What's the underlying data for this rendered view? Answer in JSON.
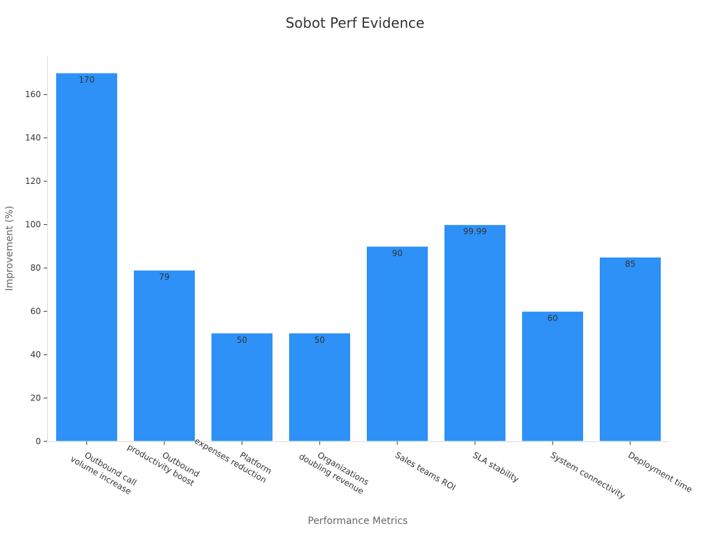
{
  "chart_data": {
    "type": "bar",
    "title": "Sobot Perf Evidence",
    "xlabel": "Performance Metrics",
    "ylabel": "Improvement (%)",
    "categories": [
      [
        "Outbound call",
        "volume increase"
      ],
      [
        "Outbound",
        "productivity boost"
      ],
      [
        "Platform",
        "expenses reduction"
      ],
      [
        "Organizations",
        "doubling revenue"
      ],
      [
        "Sales teams ROI"
      ],
      [
        "SLA stability"
      ],
      [
        "System connectivity"
      ],
      [
        "Deployment time"
      ]
    ],
    "values": [
      170,
      79,
      50,
      50,
      90,
      99.99,
      60,
      85
    ],
    "data_labels": [
      "170",
      "79",
      "50",
      "50",
      "90",
      "99.99",
      "60",
      "85"
    ],
    "ylim": [
      0,
      178
    ],
    "yticks": [
      0,
      20,
      40,
      60,
      80,
      100,
      120,
      140,
      160
    ],
    "grid": false,
    "bar_color": "#2e91f7"
  }
}
